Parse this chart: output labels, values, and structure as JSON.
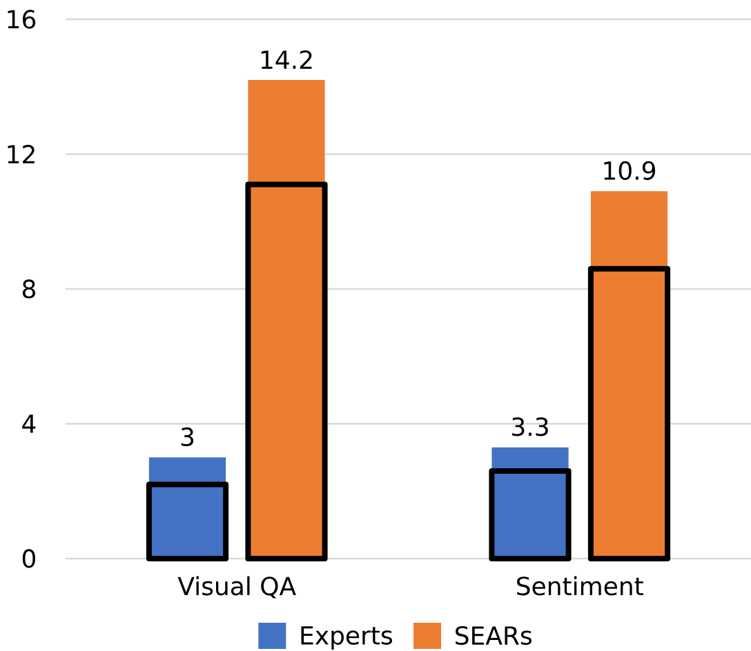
{
  "chart_data": {
    "type": "bar",
    "categories": [
      "Visual QA",
      "Sentiment"
    ],
    "series": [
      {
        "name": "Experts",
        "color": "#4472c4",
        "values": [
          3,
          3.3
        ],
        "value_labels": [
          "3",
          "3.3"
        ]
      },
      {
        "name": "SEARs",
        "color": "#ed7d31",
        "values": [
          14.2,
          10.9
        ],
        "value_labels": [
          "14.2",
          "10.9"
        ]
      },
      {
        "color": "#000000",
        "values": [
          2.2,
          2.6
        ]
      },
      {
        "color": "#000000",
        "values": [
          11.1,
          8.6
        ]
      }
    ],
    "ylim": [
      0,
      16
    ],
    "yticks": [
      0,
      4,
      8,
      12,
      16
    ],
    "grid": "y",
    "legend": "bottom"
  }
}
